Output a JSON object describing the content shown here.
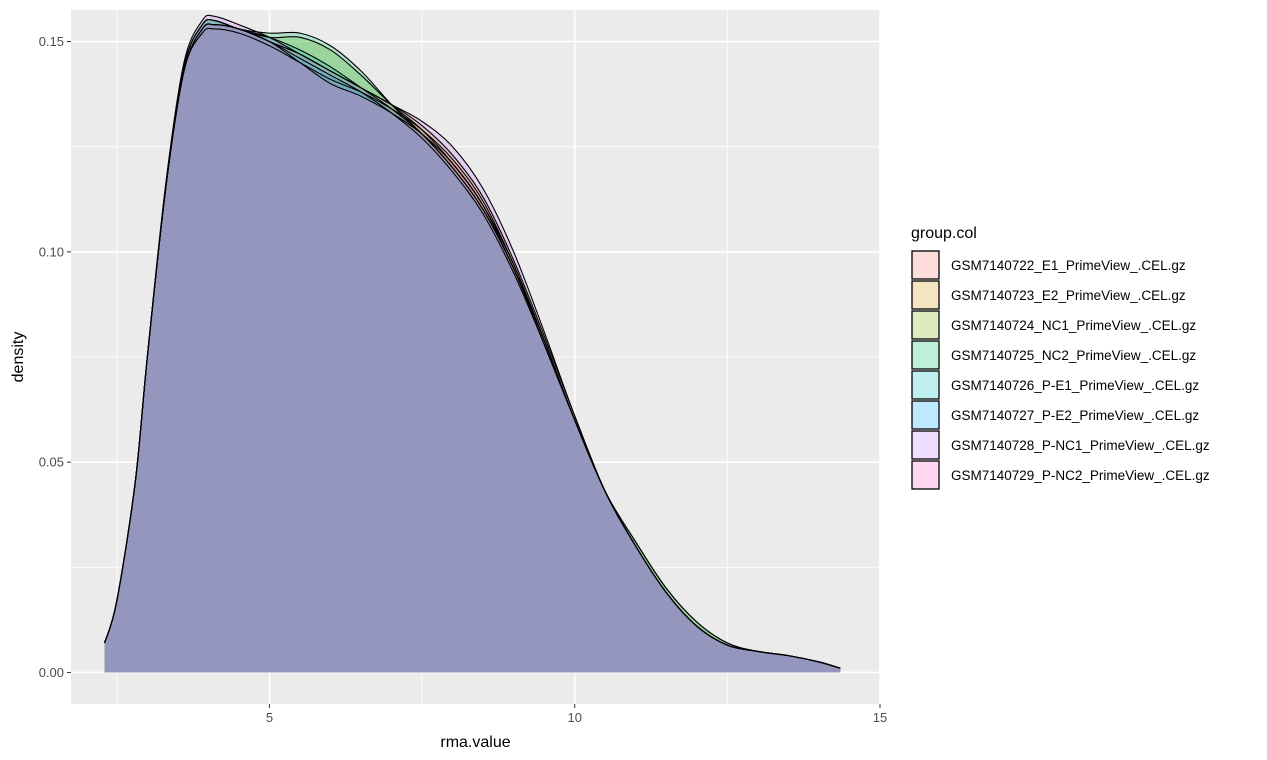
{
  "chart_data": {
    "type": "area",
    "subtype": "density",
    "title": "",
    "xlabel": "rma.value",
    "ylabel": "density",
    "xlim": [
      1.75,
      15
    ],
    "ylim": [
      -0.0075,
      0.1575
    ],
    "x_ticks": [
      5,
      10,
      15
    ],
    "x_tick_labels": [
      "5",
      "10",
      "15"
    ],
    "y_ticks": [
      0,
      0.05,
      0.1,
      0.15
    ],
    "y_tick_labels": [
      "0.00",
      "0.05",
      "0.10",
      "0.15"
    ],
    "grid": true,
    "background": "#ebebeb",
    "legend": {
      "title": "group.col",
      "position": "right"
    },
    "fill_alpha": 0.25,
    "x": [
      2.3,
      2.5,
      2.8,
      3.0,
      3.3,
      3.6,
      3.9,
      4.1,
      4.5,
      5.0,
      5.5,
      6.0,
      6.5,
      7.0,
      7.5,
      8.0,
      8.5,
      9.0,
      9.5,
      10.0,
      10.5,
      11.0,
      11.5,
      12.0,
      12.5,
      13.0,
      13.5,
      14.0,
      14.35
    ],
    "series": [
      {
        "name": "GSM7140722_E1_PrimeView_.CEL.gz",
        "color": "#F8766D",
        "values": [
          0.007,
          0.017,
          0.045,
          0.075,
          0.115,
          0.143,
          0.152,
          0.153,
          0.152,
          0.149,
          0.145,
          0.141,
          0.138,
          0.134,
          0.129,
          0.122,
          0.112,
          0.097,
          0.079,
          0.06,
          0.043,
          0.03,
          0.019,
          0.011,
          0.0065,
          0.005,
          0.004,
          0.0025,
          0.001
        ]
      },
      {
        "name": "GSM7140723_E2_PrimeView_.CEL.gz",
        "color": "#CD9600",
        "values": [
          0.007,
          0.017,
          0.045,
          0.075,
          0.115,
          0.143,
          0.153,
          0.154,
          0.153,
          0.15,
          0.147,
          0.143,
          0.139,
          0.135,
          0.13,
          0.123,
          0.113,
          0.098,
          0.08,
          0.061,
          0.043,
          0.03,
          0.019,
          0.011,
          0.0065,
          0.005,
          0.004,
          0.0025,
          0.001
        ]
      },
      {
        "name": "GSM7140724_NC1_PrimeView_.CEL.gz",
        "color": "#7CAE00",
        "values": [
          0.007,
          0.017,
          0.045,
          0.075,
          0.115,
          0.144,
          0.154,
          0.155,
          0.153,
          0.151,
          0.151,
          0.148,
          0.142,
          0.135,
          0.129,
          0.121,
          0.111,
          0.097,
          0.079,
          0.06,
          0.043,
          0.031,
          0.02,
          0.012,
          0.007,
          0.005,
          0.004,
          0.0025,
          0.001
        ]
      },
      {
        "name": "GSM7140725_NC2_PrimeView_.CEL.gz",
        "color": "#00BE67",
        "values": [
          0.007,
          0.017,
          0.045,
          0.075,
          0.115,
          0.144,
          0.154,
          0.155,
          0.153,
          0.152,
          0.152,
          0.149,
          0.143,
          0.135,
          0.128,
          0.12,
          0.11,
          0.096,
          0.079,
          0.06,
          0.043,
          0.031,
          0.02,
          0.012,
          0.007,
          0.005,
          0.004,
          0.0025,
          0.001
        ]
      },
      {
        "name": "GSM7140726_P-E1_PrimeView_.CEL.gz",
        "color": "#00BFC4",
        "values": [
          0.007,
          0.017,
          0.045,
          0.075,
          0.115,
          0.144,
          0.154,
          0.155,
          0.153,
          0.151,
          0.148,
          0.144,
          0.139,
          0.134,
          0.128,
          0.12,
          0.11,
          0.096,
          0.078,
          0.06,
          0.043,
          0.03,
          0.019,
          0.011,
          0.0065,
          0.005,
          0.004,
          0.0025,
          0.001
        ]
      },
      {
        "name": "GSM7140727_P-E2_PrimeView_.CEL.gz",
        "color": "#00A9FF",
        "values": [
          0.007,
          0.017,
          0.045,
          0.075,
          0.115,
          0.143,
          0.153,
          0.154,
          0.153,
          0.15,
          0.146,
          0.142,
          0.138,
          0.133,
          0.127,
          0.119,
          0.109,
          0.095,
          0.078,
          0.06,
          0.043,
          0.03,
          0.019,
          0.011,
          0.0065,
          0.005,
          0.004,
          0.0025,
          0.001
        ]
      },
      {
        "name": "GSM7140728_P-NC1_PrimeView_.CEL.gz",
        "color": "#C77CFF",
        "values": [
          0.007,
          0.017,
          0.045,
          0.075,
          0.116,
          0.145,
          0.155,
          0.156,
          0.154,
          0.151,
          0.147,
          0.143,
          0.139,
          0.135,
          0.131,
          0.125,
          0.115,
          0.1,
          0.081,
          0.061,
          0.043,
          0.03,
          0.019,
          0.011,
          0.0065,
          0.005,
          0.004,
          0.0025,
          0.001
        ]
      },
      {
        "name": "GSM7140729_P-NC2_PrimeView_.CEL.gz",
        "color": "#FF61CC",
        "values": [
          0.007,
          0.017,
          0.045,
          0.075,
          0.115,
          0.143,
          0.153,
          0.154,
          0.153,
          0.15,
          0.145,
          0.14,
          0.137,
          0.133,
          0.128,
          0.121,
          0.111,
          0.096,
          0.079,
          0.06,
          0.043,
          0.03,
          0.019,
          0.011,
          0.0065,
          0.005,
          0.004,
          0.0025,
          0.001
        ]
      }
    ]
  }
}
